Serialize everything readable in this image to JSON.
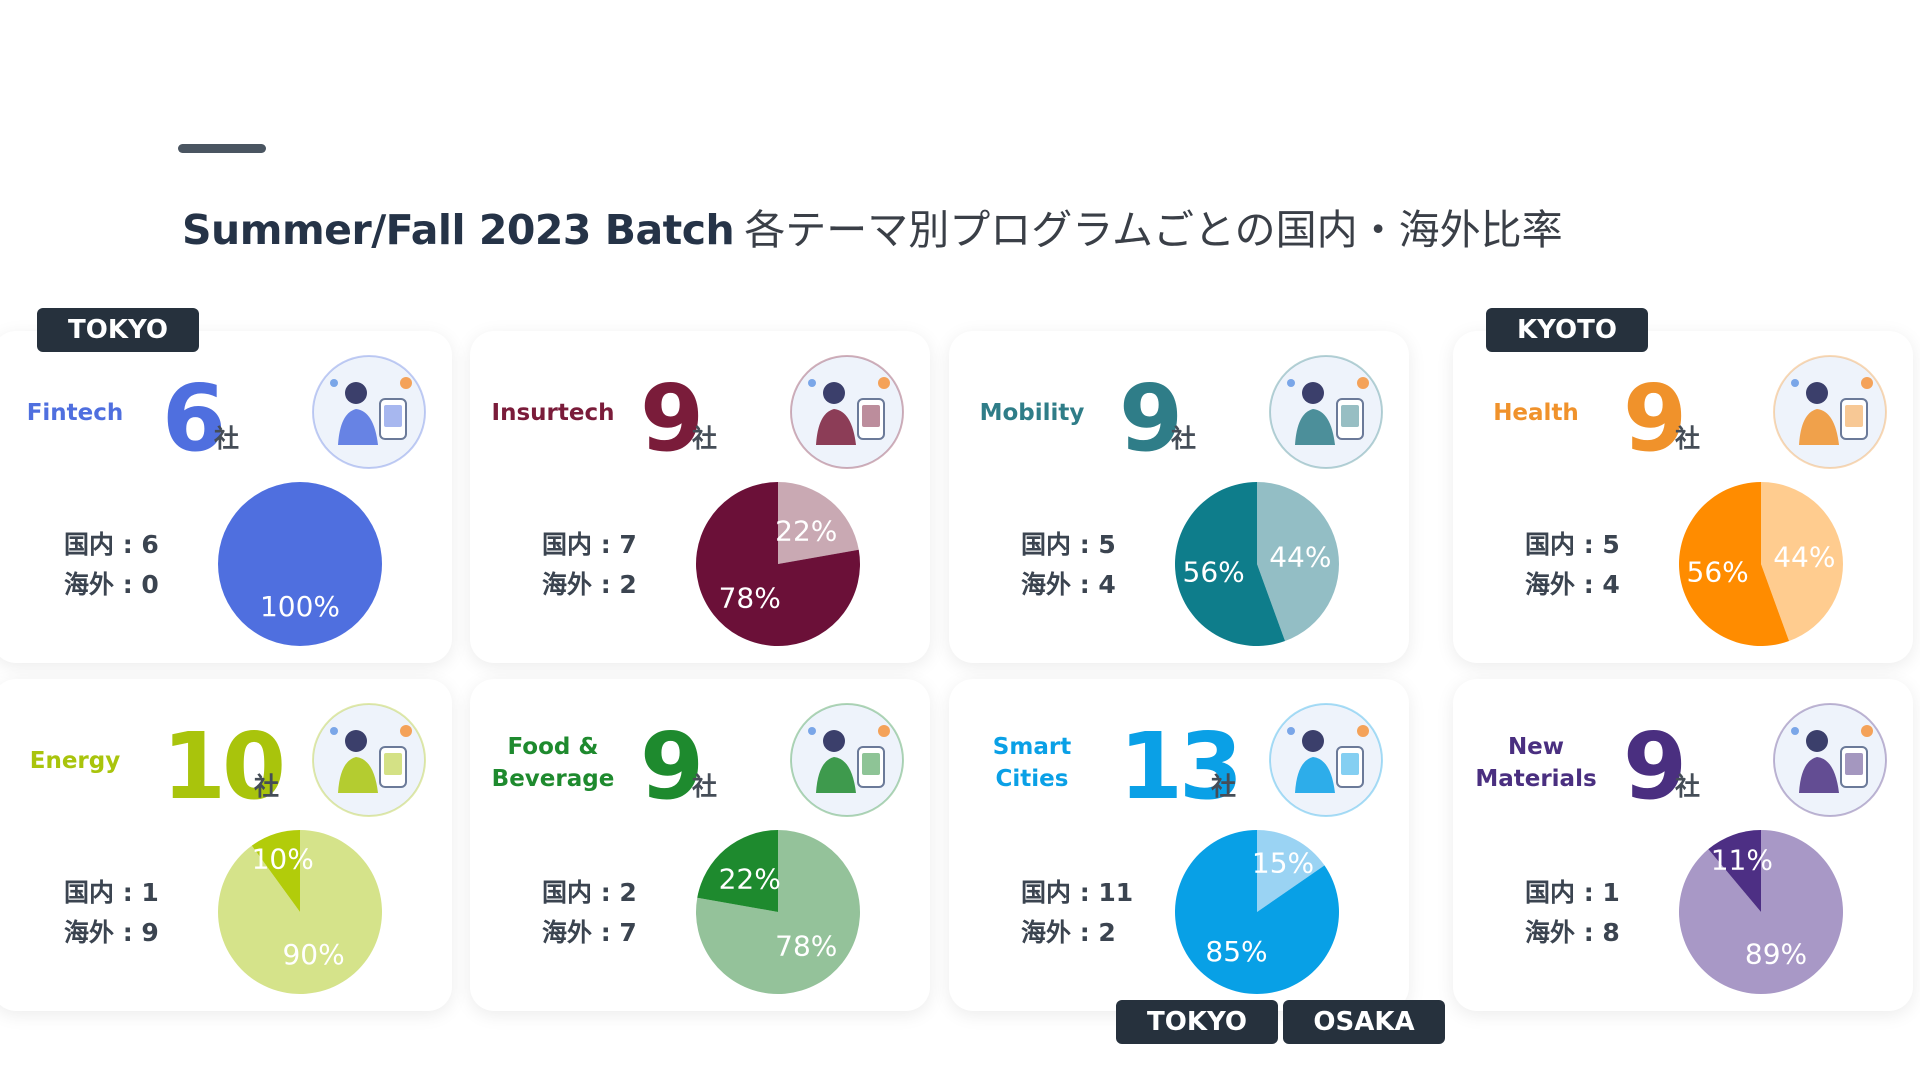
{
  "title": {
    "en": "Summer/Fall 2023 Batch",
    "jp": "各テーマ別プログラムごとの国内・海外比率"
  },
  "labels": {
    "unit": "社",
    "domestic_prefix": "国内 : ",
    "overseas_prefix": "海外 : "
  },
  "location_tags": {
    "tokyo_top": "TOKYO",
    "kyoto": "KYOTO",
    "tokyo_bottom": "TOKYO",
    "osaka": "OSAKA"
  },
  "chart_data": [
    {
      "type": "pie",
      "theme": "Fintech",
      "count": "6",
      "domestic": 6,
      "overseas": 0,
      "percent_domestic": "100%",
      "percent_overseas": "",
      "color_domestic": "#4f6fdf",
      "color_overseas": "#b9c6f3",
      "theme_color": "#4f6fdf",
      "illustration": "fintech-network-hands"
    },
    {
      "type": "pie",
      "theme": "Insurtech",
      "count": "9",
      "domestic": 7,
      "overseas": 2,
      "percent_domestic": "78%",
      "percent_overseas": "22%",
      "color_domestic": "#6b1038",
      "color_overseas": "#c9a9b3",
      "theme_color": "#7a1c3a",
      "illustration": "insurtech-person-scale"
    },
    {
      "type": "pie",
      "theme": "Mobility",
      "count": "9",
      "domestic": 5,
      "overseas": 4,
      "percent_domestic": "56%",
      "percent_overseas": "44%",
      "color_domestic": "#0e7d8b",
      "color_overseas": "#93bec5",
      "theme_color": "#2f7d88",
      "illustration": "mobility-pod-vehicle"
    },
    {
      "type": "pie",
      "theme": "Health",
      "count": "9",
      "domestic": 5,
      "overseas": 4,
      "percent_domestic": "56%",
      "percent_overseas": "44%",
      "color_domestic": "#ff8c00",
      "color_overseas": "#ffcc8f",
      "theme_color": "#f0922b",
      "illustration": "health-lab-worker"
    },
    {
      "type": "pie",
      "theme": "Energy",
      "count": "10",
      "domestic": 1,
      "overseas": 9,
      "percent_domestic": "10%",
      "percent_overseas": "90%",
      "color_domestic": "#b2cc0a",
      "color_overseas": "#d5e38a",
      "theme_color": "#a9c40c",
      "illustration": "energy-phone-map"
    },
    {
      "type": "pie",
      "theme": "Food & Beverage",
      "count": "9",
      "domestic": 2,
      "overseas": 7,
      "percent_domestic": "22%",
      "percent_overseas": "78%",
      "color_domestic": "#1e8a2e",
      "color_overseas": "#94c29a",
      "theme_color": "#1e8a2e",
      "illustration": "food-vertical-farm"
    },
    {
      "type": "pie",
      "theme": "Smart Cities",
      "count": "13",
      "domestic": 11,
      "overseas": 2,
      "percent_domestic": "85%",
      "percent_overseas": "15%",
      "color_domestic": "#08a0e6",
      "color_overseas": "#9ad3f3",
      "theme_color": "#0aa0e6",
      "illustration": "smart-city-hand"
    },
    {
      "type": "pie",
      "theme": "New Materials",
      "count": "9",
      "domestic": 1,
      "overseas": 8,
      "percent_domestic": "11%",
      "percent_overseas": "89%",
      "color_domestic": "#4d2f84",
      "color_overseas": "#a898c6",
      "theme_color": "#4a2f80",
      "illustration": "materials-sphere-hand"
    }
  ]
}
